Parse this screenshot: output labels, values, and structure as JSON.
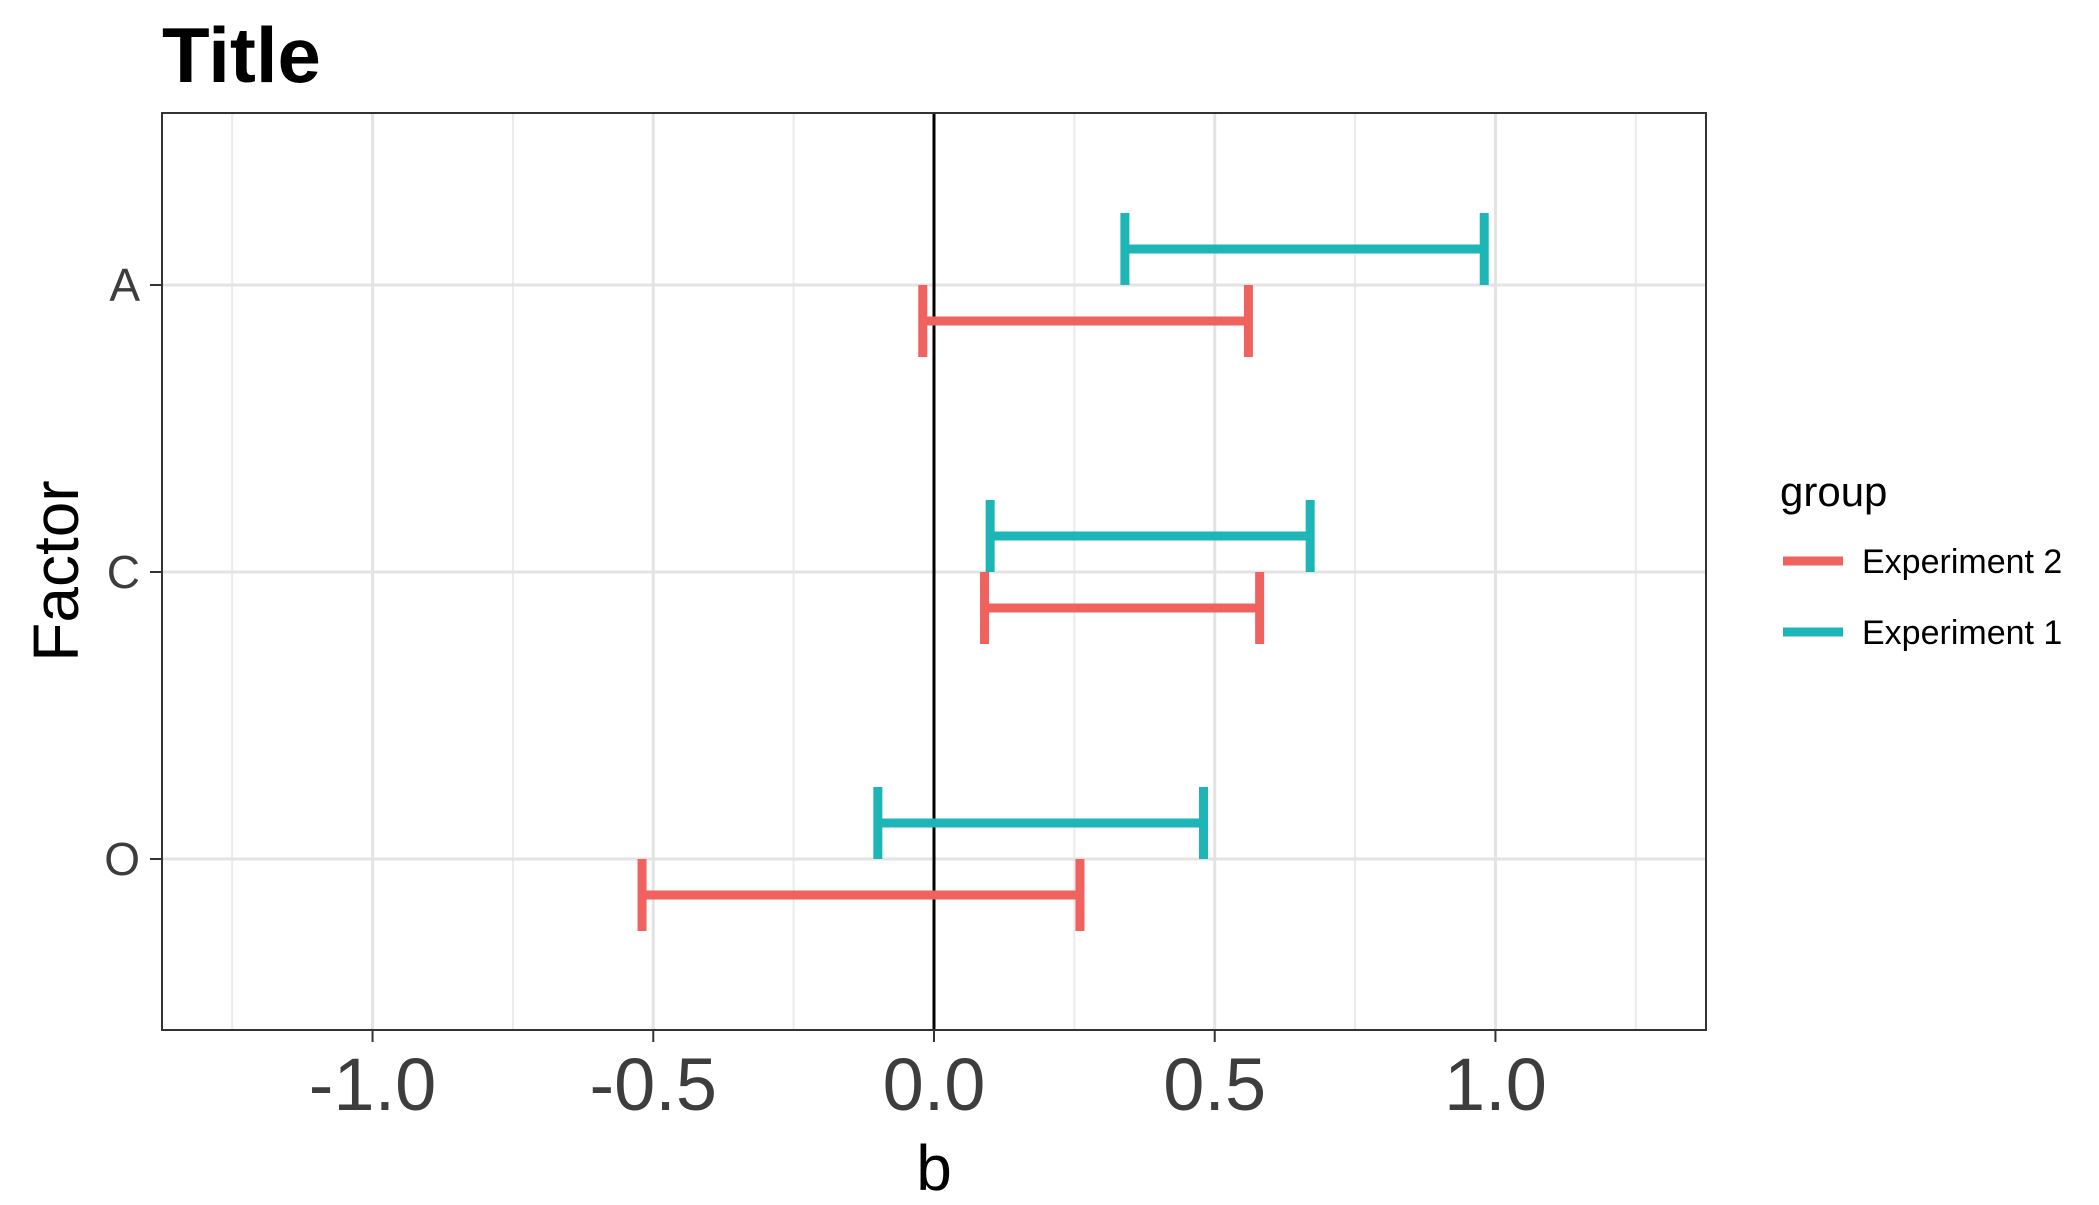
{
  "chart_data": {
    "type": "errorbar-horizontal",
    "title": "Title",
    "xlabel": "b",
    "ylabel": "Factor",
    "xlim": [
      -1.375,
      1.375
    ],
    "x_ticks": [
      -1.0,
      -0.5,
      0.0,
      0.5,
      1.0
    ],
    "x_tick_labels": [
      "-1.0",
      "-0.5",
      "0.0",
      "0.5",
      "1.0"
    ],
    "x_minor_grid": [
      -1.25,
      -0.75,
      -0.25,
      0.25,
      0.75,
      1.25
    ],
    "reference_line_x": 0.0,
    "categories": [
      "A",
      "C",
      "O"
    ],
    "legend": {
      "title": "group",
      "position": "right"
    },
    "grid": true,
    "series": [
      {
        "name": "Experiment 2",
        "color": "#F0625E",
        "intervals": [
          {
            "category": "A",
            "low": -0.02,
            "high": 0.56
          },
          {
            "category": "C",
            "low": 0.09,
            "high": 0.58
          },
          {
            "category": "O",
            "low": -0.52,
            "high": 0.26
          }
        ]
      },
      {
        "name": "Experiment 1",
        "color": "#1DB5B5",
        "intervals": [
          {
            "category": "A",
            "low": 0.34,
            "high": 0.98
          },
          {
            "category": "C",
            "low": 0.1,
            "high": 0.67
          },
          {
            "category": "O",
            "low": -0.1,
            "high": 0.48
          }
        ]
      }
    ]
  }
}
